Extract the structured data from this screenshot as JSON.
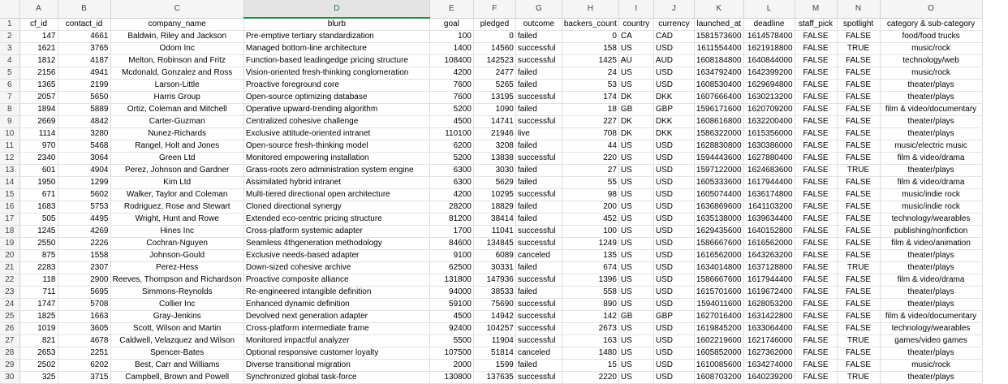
{
  "column_letters": [
    "A",
    "B",
    "C",
    "D",
    "E",
    "F",
    "G",
    "H",
    "I",
    "J",
    "K",
    "L",
    "M",
    "N",
    "O"
  ],
  "selected_column": "D",
  "row_numbers": [
    1,
    2,
    3,
    4,
    5,
    6,
    7,
    8,
    9,
    10,
    11,
    12,
    13,
    14,
    15,
    16,
    17,
    18,
    19,
    20,
    21,
    22,
    23,
    24,
    25,
    26,
    27,
    28,
    29,
    30
  ],
  "headers": [
    "cf_id",
    "contact_id",
    "company_name",
    "blurb",
    "goal",
    "pledged",
    "outcome",
    "backers_count",
    "country",
    "currency",
    "launched_at",
    "deadline",
    "staff_pick",
    "spotlight",
    "category & sub-category"
  ],
  "rows": [
    [
      "147",
      "4661",
      "Baldwin, Riley and Jackson",
      "Pre-emptive tertiary standardization",
      "100",
      "0",
      "failed",
      "0",
      "CA",
      "CAD",
      "1581573600",
      "1614578400",
      "FALSE",
      "FALSE",
      "food/food trucks"
    ],
    [
      "1621",
      "3765",
      "Odom Inc",
      "Managed bottom-line architecture",
      "1400",
      "14560",
      "successful",
      "158",
      "US",
      "USD",
      "1611554400",
      "1621918800",
      "FALSE",
      "TRUE",
      "music/rock"
    ],
    [
      "1812",
      "4187",
      "Melton, Robinson and Fritz",
      "Function-based leadingedge pricing structure",
      "108400",
      "142523",
      "successful",
      "1425",
      "AU",
      "AUD",
      "1608184800",
      "1640844000",
      "FALSE",
      "FALSE",
      "technology/web"
    ],
    [
      "2156",
      "4941",
      "Mcdonald, Gonzalez and Ross",
      "Vision-oriented fresh-thinking conglomeration",
      "4200",
      "2477",
      "failed",
      "24",
      "US",
      "USD",
      "1634792400",
      "1642399200",
      "FALSE",
      "FALSE",
      "music/rock"
    ],
    [
      "1365",
      "2199",
      "Larson-Little",
      "Proactive foreground core",
      "7600",
      "5265",
      "failed",
      "53",
      "US",
      "USD",
      "1608530400",
      "1629694800",
      "FALSE",
      "FALSE",
      "theater/plays"
    ],
    [
      "2057",
      "5650",
      "Harris Group",
      "Open-source optimizing database",
      "7600",
      "13195",
      "successful",
      "174",
      "DK",
      "DKK",
      "1607666400",
      "1630213200",
      "FALSE",
      "FALSE",
      "theater/plays"
    ],
    [
      "1894",
      "5889",
      "Ortiz, Coleman and Mitchell",
      "Operative upward-trending algorithm",
      "5200",
      "1090",
      "failed",
      "18",
      "GB",
      "GBP",
      "1596171600",
      "1620709200",
      "FALSE",
      "FALSE",
      "film & video/documentary"
    ],
    [
      "2669",
      "4842",
      "Carter-Guzman",
      "Centralized cohesive challenge",
      "4500",
      "14741",
      "successful",
      "227",
      "DK",
      "DKK",
      "1608616800",
      "1632200400",
      "FALSE",
      "FALSE",
      "theater/plays"
    ],
    [
      "1114",
      "3280",
      "Nunez-Richards",
      "Exclusive attitude-oriented intranet",
      "110100",
      "21946",
      "live",
      "708",
      "DK",
      "DKK",
      "1586322000",
      "1615356000",
      "FALSE",
      "FALSE",
      "theater/plays"
    ],
    [
      "970",
      "5468",
      "Rangel, Holt and Jones",
      "Open-source fresh-thinking model",
      "6200",
      "3208",
      "failed",
      "44",
      "US",
      "USD",
      "1628830800",
      "1630386000",
      "FALSE",
      "FALSE",
      "music/electric music"
    ],
    [
      "2340",
      "3064",
      "Green Ltd",
      "Monitored empowering installation",
      "5200",
      "13838",
      "successful",
      "220",
      "US",
      "USD",
      "1594443600",
      "1627880400",
      "FALSE",
      "FALSE",
      "film & video/drama"
    ],
    [
      "601",
      "4904",
      "Perez, Johnson and Gardner",
      "Grass-roots zero administration system engine",
      "6300",
      "3030",
      "failed",
      "27",
      "US",
      "USD",
      "1597122000",
      "1624683600",
      "FALSE",
      "TRUE",
      "theater/plays"
    ],
    [
      "1950",
      "1299",
      "Kim Ltd",
      "Assimilated hybrid intranet",
      "6300",
      "5629",
      "failed",
      "55",
      "US",
      "USD",
      "1605333600",
      "1617944400",
      "FALSE",
      "FALSE",
      "film & video/drama"
    ],
    [
      "671",
      "5602",
      "Walker, Taylor and Coleman",
      "Multi-tiered directional open architecture",
      "4200",
      "10295",
      "successful",
      "98",
      "US",
      "USD",
      "1605074400",
      "1636174800",
      "FALSE",
      "FALSE",
      "music/indie rock"
    ],
    [
      "1683",
      "5753",
      "Rodriguez, Rose and Stewart",
      "Cloned directional synergy",
      "28200",
      "18829",
      "failed",
      "200",
      "US",
      "USD",
      "1636869600",
      "1641103200",
      "FALSE",
      "FALSE",
      "music/indie rock"
    ],
    [
      "505",
      "4495",
      "Wright, Hunt and Rowe",
      "Extended eco-centric pricing structure",
      "81200",
      "38414",
      "failed",
      "452",
      "US",
      "USD",
      "1635138000",
      "1639634400",
      "FALSE",
      "FALSE",
      "technology/wearables"
    ],
    [
      "1245",
      "4269",
      "Hines Inc",
      "Cross-platform systemic adapter",
      "1700",
      "11041",
      "successful",
      "100",
      "US",
      "USD",
      "1629435600",
      "1640152800",
      "FALSE",
      "FALSE",
      "publishing/nonfiction"
    ],
    [
      "2550",
      "2226",
      "Cochran-Nguyen",
      "Seamless 4thgeneration methodology",
      "84600",
      "134845",
      "successful",
      "1249",
      "US",
      "USD",
      "1586667600",
      "1616562000",
      "FALSE",
      "FALSE",
      "film & video/animation"
    ],
    [
      "875",
      "1558",
      "Johnson-Gould",
      "Exclusive needs-based adapter",
      "9100",
      "6089",
      "canceled",
      "135",
      "US",
      "USD",
      "1616562000",
      "1643263200",
      "FALSE",
      "FALSE",
      "theater/plays"
    ],
    [
      "2283",
      "2307",
      "Perez-Hess",
      "Down-sized cohesive archive",
      "62500",
      "30331",
      "failed",
      "674",
      "US",
      "USD",
      "1634014800",
      "1637128800",
      "FALSE",
      "TRUE",
      "theater/plays"
    ],
    [
      "118",
      "2900",
      "Reeves, Thompson and Richardson",
      "Proactive composite alliance",
      "131800",
      "147936",
      "successful",
      "1396",
      "US",
      "USD",
      "1586667600",
      "1617944400",
      "FALSE",
      "FALSE",
      "film & video/drama"
    ],
    [
      "711",
      "5695",
      "Simmons-Reynolds",
      "Re-engineered intangible definition",
      "94000",
      "38533",
      "failed",
      "558",
      "US",
      "USD",
      "1615701600",
      "1619672400",
      "FALSE",
      "FALSE",
      "theater/plays"
    ],
    [
      "1747",
      "5708",
      "Collier Inc",
      "Enhanced dynamic definition",
      "59100",
      "75690",
      "successful",
      "890",
      "US",
      "USD",
      "1594011600",
      "1628053200",
      "FALSE",
      "FALSE",
      "theater/plays"
    ],
    [
      "1825",
      "1663",
      "Gray-Jenkins",
      "Devolved next generation adapter",
      "4500",
      "14942",
      "successful",
      "142",
      "GB",
      "GBP",
      "1627016400",
      "1631422800",
      "FALSE",
      "FALSE",
      "film & video/documentary"
    ],
    [
      "1019",
      "3605",
      "Scott, Wilson and Martin",
      "Cross-platform intermediate frame",
      "92400",
      "104257",
      "successful",
      "2673",
      "US",
      "USD",
      "1619845200",
      "1633064400",
      "FALSE",
      "FALSE",
      "technology/wearables"
    ],
    [
      "821",
      "4678",
      "Caldwell, Velazquez and Wilson",
      "Monitored impactful analyzer",
      "5500",
      "11904",
      "successful",
      "163",
      "US",
      "USD",
      "1602219600",
      "1621746000",
      "FALSE",
      "TRUE",
      "games/video games"
    ],
    [
      "2653",
      "2251",
      "Spencer-Bates",
      "Optional responsive customer loyalty",
      "107500",
      "51814",
      "canceled",
      "1480",
      "US",
      "USD",
      "1605852000",
      "1627362000",
      "FALSE",
      "FALSE",
      "theater/plays"
    ],
    [
      "2502",
      "6202",
      "Best, Carr and Williams",
      "Diverse transitional migration",
      "2000",
      "1599",
      "failed",
      "15",
      "US",
      "USD",
      "1610085600",
      "1634274000",
      "FALSE",
      "FALSE",
      "music/rock"
    ],
    [
      "325",
      "3715",
      "Campbell, Brown and Powell",
      "Synchronized global task-force",
      "130800",
      "137635",
      "successful",
      "2220",
      "US",
      "USD",
      "1608703200",
      "1640239200",
      "FALSE",
      "TRUE",
      "theater/plays"
    ]
  ]
}
